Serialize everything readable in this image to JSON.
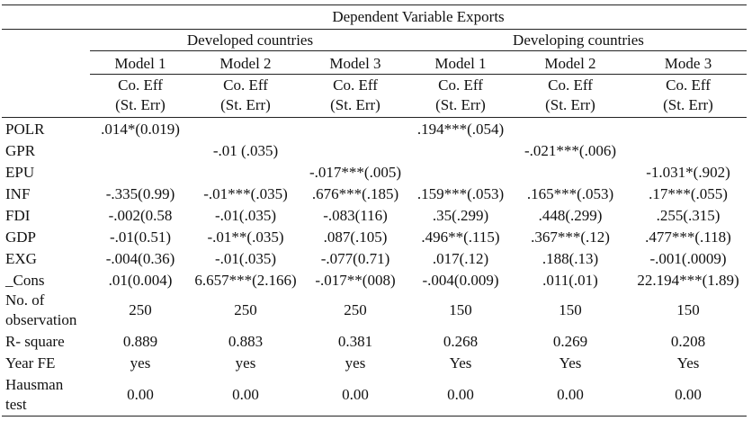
{
  "header": {
    "dependent": "Dependent Variable Exports",
    "groups": [
      "Developed countries",
      "Developing countries"
    ],
    "models": [
      "Model 1",
      "Model 2",
      "Model 3",
      "Model 1",
      "Model 2",
      "Mode 3"
    ],
    "coeff_label": "Co. Eff",
    "se_label": "(St. Err)"
  },
  "rows": [
    {
      "label": "POLR",
      "values": [
        ".014*(0.019)",
        "",
        "",
        ".194***(.054)",
        "",
        ""
      ]
    },
    {
      "label": "GPR",
      "values": [
        "",
        "-.01 (.035)",
        "",
        "",
        "-.021***(.006)",
        ""
      ]
    },
    {
      "label": "EPU",
      "values": [
        "",
        "",
        "-.017***(.005)",
        "",
        "",
        "-1.031*(.902)"
      ]
    },
    {
      "label": "INF",
      "values": [
        "-.335(0.99)",
        "-.01***(.035)",
        ".676***(.185)",
        ".159***(.053)",
        ".165***(.053)",
        ".17***(.055)"
      ]
    },
    {
      "label": "FDI",
      "values": [
        "-.002(0.58",
        "-.01(.035)",
        "-.083(116)",
        ".35(.299)",
        ".448(.299)",
        ".255(.315)"
      ]
    },
    {
      "label": "GDP",
      "values": [
        "-.01(0.51)",
        "-.01**(.035)",
        ".087(.105)",
        ".496**(.115)",
        ".367***(.12)",
        ".477***(.118)"
      ]
    },
    {
      "label": "EXG",
      "values": [
        "-.004(0.36)",
        "-.01(.035)",
        "-.077(0.71)",
        ".017(.12)",
        ".188(.13)",
        "-.001(.0009)"
      ]
    },
    {
      "label": "_Cons",
      "values": [
        ".01(0.004)",
        "6.657***(2.166)",
        "-.017**(008)",
        "-.004(0.009)",
        ".011(.01)",
        "22.194***(1.89)"
      ]
    }
  ],
  "obs": {
    "label_1": "No. of",
    "label_2": "observation",
    "values": [
      "250",
      "250",
      "250",
      "150",
      "150",
      "150"
    ]
  },
  "rsq": {
    "label": "R- square",
    "values": [
      "0.889",
      "0.883",
      "0.381",
      "0.268",
      "0.269",
      "0.208"
    ]
  },
  "yearfe": {
    "label": "Year FE",
    "values": [
      "yes",
      "yes",
      "yes",
      "Yes",
      "Yes",
      "Yes"
    ]
  },
  "hausman": {
    "label_1": "Hausman",
    "label_2": "test",
    "values": [
      "0.00",
      "0.00",
      "0.00",
      "0.00",
      "0.00",
      "0.00"
    ]
  }
}
